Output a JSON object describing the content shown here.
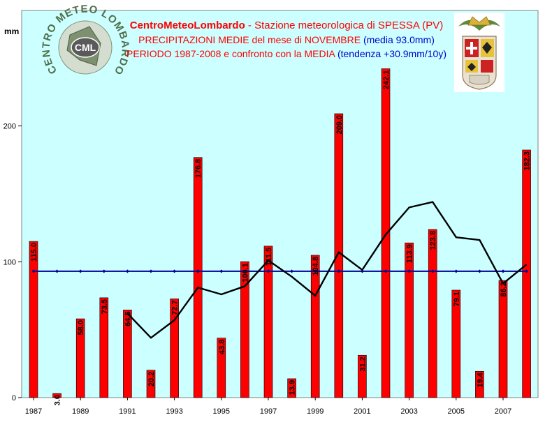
{
  "chart_data": {
    "type": "bar",
    "unit_label": "mm",
    "title": {
      "brand": "CentroMeteoLombardo",
      "station": " - Stazione meteorologica di SPESSA (PV)",
      "line2": "PRECIPITAZIONI MEDIE del mese di NOVEMBRE ",
      "line2_media": "(media 93.0mm)",
      "line3": "PERIODO 1987-2008 e confronto con la MEDIA ",
      "line3_trend": "(tendenza +30.9mm/10y)"
    },
    "logo": {
      "text": "CML",
      "ring_text": "CENTRO METEO LOMBARDO"
    },
    "x_tick_labels": [
      "1987",
      "1989",
      "1991",
      "1993",
      "1995",
      "1997",
      "1999",
      "2001",
      "2003",
      "2005",
      "2007"
    ],
    "y_tick_labels": [
      "0",
      "100",
      "200"
    ],
    "ylim": [
      0,
      285
    ],
    "categories": [
      "1987",
      "1988",
      "1989",
      "1990",
      "1991",
      "1992",
      "1993",
      "1994",
      "1995",
      "1996",
      "1997",
      "1998",
      "1999",
      "2000",
      "2001",
      "2002",
      "2003",
      "2004",
      "2005",
      "2006",
      "2007",
      "2008"
    ],
    "series": [
      {
        "type": "bar",
        "values": [
          115.0,
          3.0,
          58.0,
          73.5,
          64.5,
          20.2,
          72.7,
          176.8,
          43.8,
          100.1,
          111.5,
          13.9,
          104.8,
          209.0,
          31.2,
          242.1,
          113.9,
          123.8,
          79.1,
          19.4,
          86.2,
          182.3
        ],
        "labels": [
          "115.0",
          "3.0",
          "58.0",
          "73.5",
          "64.5",
          "20.2",
          "72.7",
          "176.8",
          "43.8",
          "100.1",
          "111.5",
          "13.9",
          "104.8",
          "209.0",
          "31.2",
          "242.1",
          "113.9",
          "123.8",
          "79.1",
          "19.4",
          "86.2",
          "182.3"
        ],
        "color": "#ff0000"
      },
      {
        "type": "line",
        "values": [
          93.0,
          93.0,
          93.0,
          93.0,
          93.0,
          93.0,
          93.0,
          93.0,
          93.0,
          93.0,
          93.0,
          93.0,
          93.0,
          93.0,
          93.0,
          93.0,
          93.0,
          93.0,
          93.0,
          93.0,
          93.0,
          93.0
        ],
        "color": "#000099"
      },
      {
        "type": "line",
        "x": [
          "1991",
          "1992",
          "1993",
          "1994",
          "1995",
          "1996",
          "1997",
          "1998",
          "1999",
          "2000",
          "2001",
          "2002",
          "2003",
          "2004",
          "2005",
          "2006",
          "2007",
          "2008"
        ],
        "values": [
          62,
          44,
          57,
          81,
          76,
          82,
          101,
          89,
          75,
          107,
          94,
          120,
          140,
          144,
          118,
          116,
          84,
          98
        ],
        "color": "#000000"
      }
    ],
    "grid": false,
    "colors": {
      "plot_bg": "#ccffff",
      "bar": "#ff0000",
      "mean_line": "#000099",
      "trend_line": "#000000"
    }
  }
}
